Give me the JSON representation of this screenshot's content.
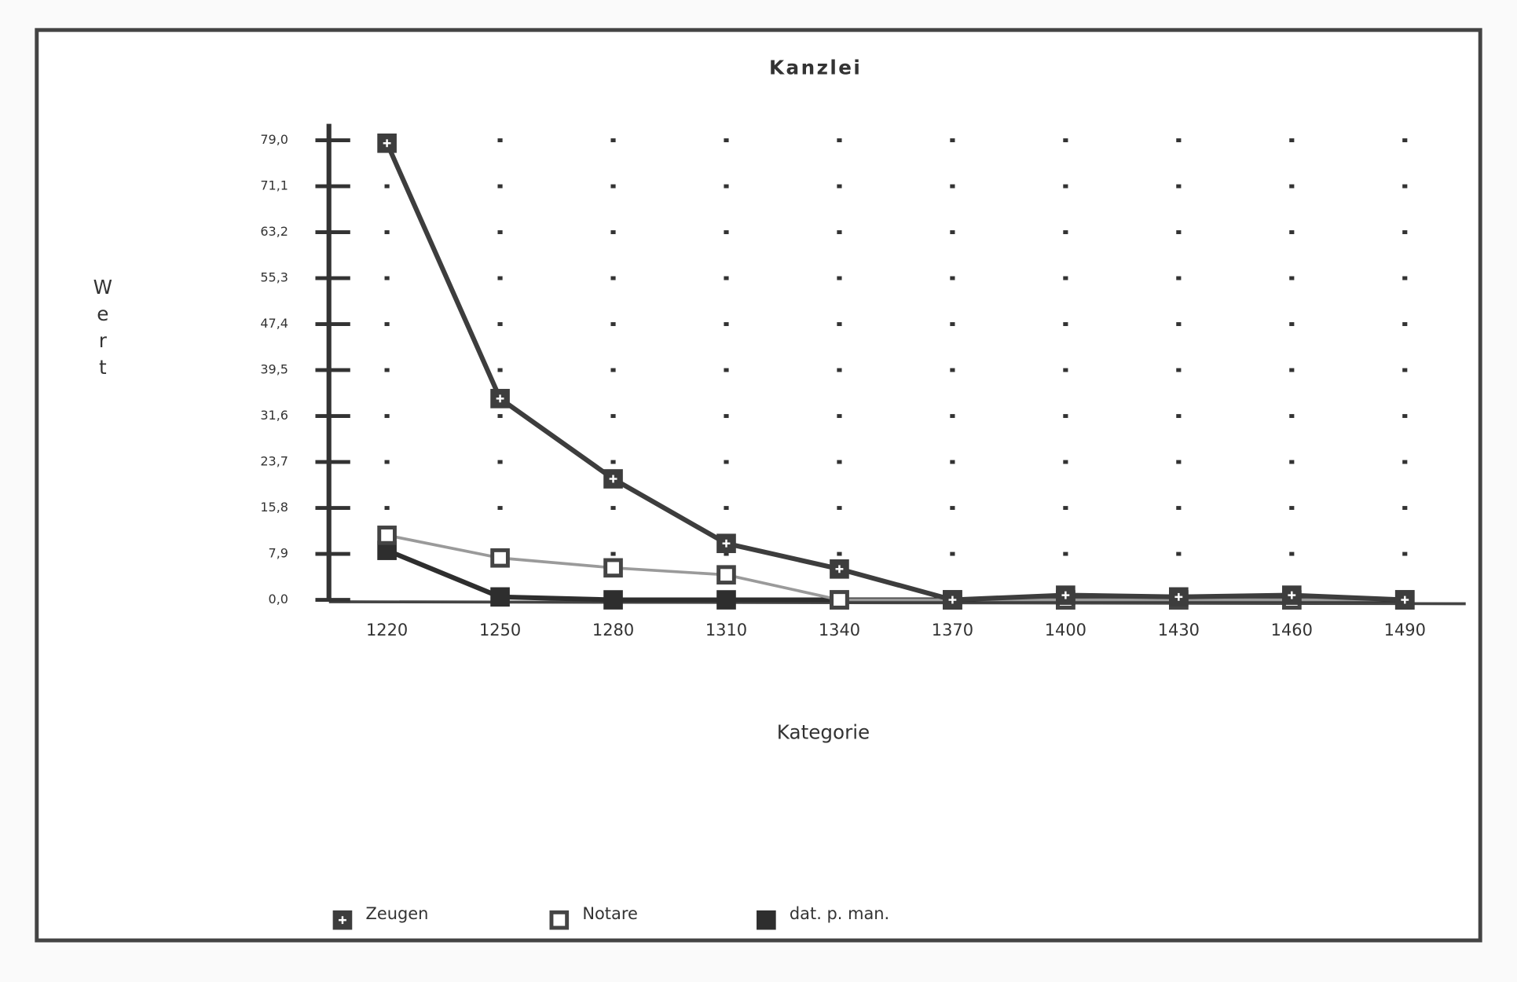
{
  "chart_data": {
    "type": "line",
    "title": "Kanzlei",
    "x_label": "Kategorie",
    "y_label": "Wert",
    "categories": [
      "1220",
      "1250",
      "1280",
      "1310",
      "1340",
      "1370",
      "1400",
      "1430",
      "1460",
      "1490"
    ],
    "series": [
      {
        "name": "Zeugen",
        "color": "#3d3d3d",
        "marker": "plus",
        "values": [
          78.5,
          34.6,
          20.8,
          9.7,
          5.3,
          0,
          0.8,
          0.5,
          0.8,
          0
        ]
      },
      {
        "name": "Notare",
        "color": "#9a9a9a",
        "marker": "hollow",
        "values": [
          11.1,
          7.2,
          5.5,
          4.3,
          0,
          0,
          0,
          0,
          0,
          0
        ]
      },
      {
        "name": "dat. p. man.",
        "color": "#2e2e2e",
        "marker": "filled",
        "values": [
          8.5,
          0.5,
          0,
          0,
          0,
          0,
          0,
          0,
          0,
          0
        ]
      }
    ],
    "ylim": [
      0,
      79
    ],
    "yticks": [
      {
        "value": 0,
        "label": "0,0"
      },
      {
        "value": 7.9,
        "label": "7,9"
      },
      {
        "value": 15.8,
        "label": "15,8"
      },
      {
        "value": 23.7,
        "label": "23,7"
      },
      {
        "value": 31.6,
        "label": "31,6"
      },
      {
        "value": 39.5,
        "label": "39,5"
      },
      {
        "value": 47.4,
        "label": "47,4"
      },
      {
        "value": 55.3,
        "label": "55,3"
      },
      {
        "value": 63.2,
        "label": "63,2"
      },
      {
        "value": 71.1,
        "label": "71,1"
      },
      {
        "value": 79,
        "label": "79,0"
      }
    ],
    "grid": true,
    "legend": "bottom"
  }
}
